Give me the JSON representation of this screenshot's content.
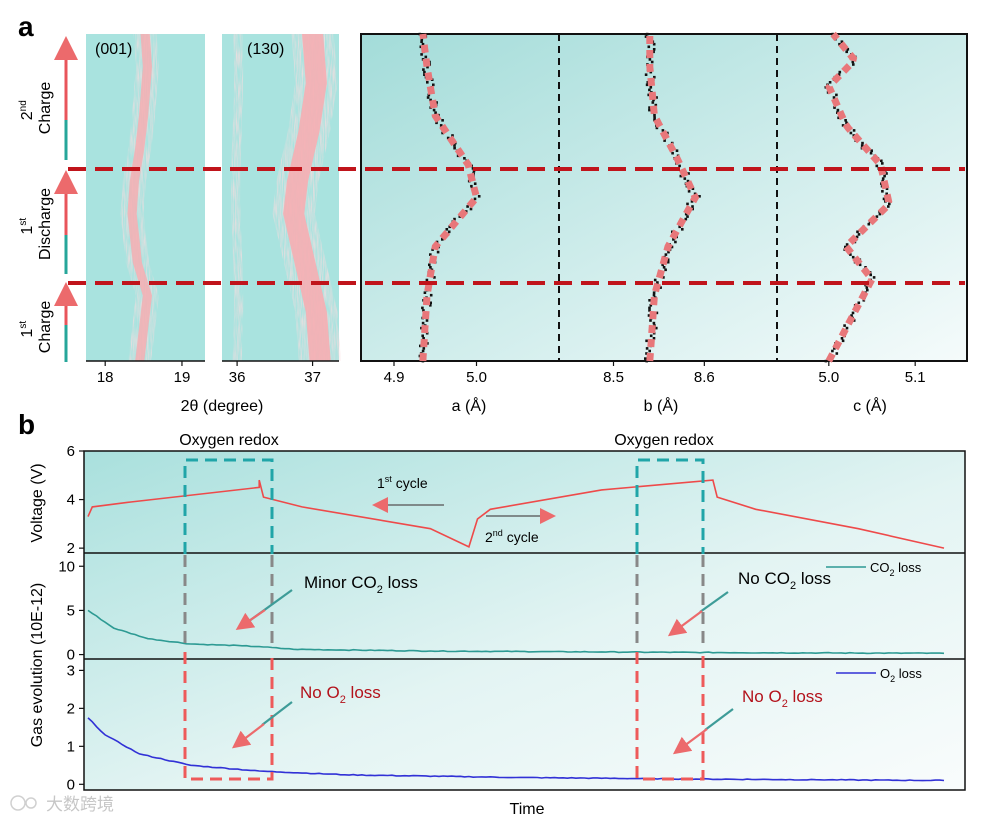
{
  "panel_a": {
    "letter": "a",
    "stages": [
      {
        "sup": "nd",
        "num": "2",
        "word": "Charge"
      },
      {
        "sup": "st",
        "num": "1",
        "word": "Discharge"
      },
      {
        "sup": "st",
        "num": "1",
        "word": "Charge"
      }
    ],
    "xrd_panels": [
      {
        "label": "(001)",
        "ticks": [
          "18",
          "19"
        ]
      },
      {
        "label": "(130)",
        "ticks": [
          "36",
          "37"
        ]
      }
    ],
    "xrd_xlabel": "2θ (degree)",
    "lattice_xlabels": [
      "a (Å)",
      "b (Å)",
      "c (Å)"
    ]
  },
  "panel_b": {
    "letter": "b",
    "redox_labels": [
      "Oxygen redox",
      "Oxygen redox"
    ],
    "voltage": {
      "ylabel": "Voltage (V)"
    },
    "cycle1": {
      "num": "1",
      "sup": "st",
      "word": " cycle"
    },
    "cycle2": {
      "num": "2",
      "sup": "nd",
      "word": " cycle"
    },
    "co2": {
      "annot1": {
        "pre": "Minor CO",
        "sub": "2",
        "post": " loss"
      },
      "annot2": {
        "pre": "No CO",
        "sub": "2",
        "post": " loss"
      },
      "legend": {
        "pre": "CO",
        "sub": "2",
        "post": " loss"
      }
    },
    "o2": {
      "annot1": {
        "pre": "No O",
        "sub": "2",
        "post": " loss"
      },
      "annot2": {
        "pre": "No O",
        "sub": "2",
        "post": " loss"
      },
      "legend": {
        "pre": "O",
        "sub": "2",
        "post": " loss"
      }
    },
    "gas_ylabel": "Gas evolution (10E-12)",
    "xlabel": "Time"
  },
  "watermark": "大数跨境",
  "colors": {
    "teal_bg": "#a9e3df",
    "pink": "#f7b7bb",
    "red_dash": "#c0141b",
    "fit": "#e8777a",
    "voltage": "#ee4a4a",
    "co2": "#2d9a93",
    "o2": "#3131d6",
    "teal_box": "#20a5a8",
    "red_box": "#ee5a5a",
    "dark_red_text": "#b3121b"
  },
  "chart_data": [
    {
      "type": "heatmap",
      "title": "(001)",
      "xlabel": "2θ (degree)",
      "xlim": [
        17.75,
        19.3
      ],
      "x_ticks": [
        18,
        19
      ],
      "peak_center": [
        [
          0.0,
          18.45
        ],
        [
          0.1,
          18.5
        ],
        [
          0.2,
          18.55
        ],
        [
          0.3,
          18.42
        ],
        [
          0.45,
          18.35
        ],
        [
          0.55,
          18.38
        ],
        [
          0.65,
          18.45
        ],
        [
          0.75,
          18.5
        ],
        [
          0.9,
          18.55
        ],
        [
          1.0,
          18.52
        ]
      ]
    },
    {
      "type": "heatmap",
      "title": "(130)",
      "xlabel": "2θ (degree)",
      "xlim": [
        35.8,
        37.35
      ],
      "x_ticks": [
        36,
        37
      ],
      "peak_center_left": 36.0,
      "peak_center_right": [
        [
          0.0,
          37.1
        ],
        [
          0.15,
          37.05
        ],
        [
          0.3,
          36.9
        ],
        [
          0.45,
          36.75
        ],
        [
          0.55,
          36.8
        ],
        [
          0.7,
          36.95
        ],
        [
          0.85,
          37.05
        ],
        [
          1.0,
          37.0
        ]
      ]
    },
    {
      "type": "scatter",
      "xlabel": "a (Å)",
      "x_ticks": [
        4.9,
        5.0
      ],
      "xlim": [
        4.86,
        5.1
      ],
      "trend": [
        [
          0.0,
          4.935
        ],
        [
          0.2,
          4.94
        ],
        [
          0.35,
          4.95
        ],
        [
          0.5,
          5.0
        ],
        [
          0.6,
          4.99
        ],
        [
          0.75,
          4.95
        ],
        [
          0.9,
          4.94
        ],
        [
          1.0,
          4.935
        ]
      ]
    },
    {
      "type": "scatter",
      "xlabel": "b (Å)",
      "x_ticks": [
        8.5,
        8.6
      ],
      "xlim": [
        8.44,
        8.68
      ],
      "trend": [
        [
          0.0,
          8.54
        ],
        [
          0.2,
          8.545
        ],
        [
          0.35,
          8.56
        ],
        [
          0.5,
          8.59
        ],
        [
          0.62,
          8.57
        ],
        [
          0.75,
          8.545
        ],
        [
          0.9,
          8.54
        ],
        [
          1.0,
          8.54
        ]
      ]
    },
    {
      "type": "scatter",
      "xlabel": "c (Å)",
      "x_ticks": [
        5.0,
        5.1
      ],
      "xlim": [
        4.94,
        5.16
      ],
      "trend": [
        [
          0.0,
          5.0
        ],
        [
          0.1,
          5.02
        ],
        [
          0.25,
          5.05
        ],
        [
          0.35,
          5.02
        ],
        [
          0.48,
          5.07
        ],
        [
          0.6,
          5.06
        ],
        [
          0.72,
          5.02
        ],
        [
          0.84,
          5.0
        ],
        [
          0.92,
          5.03
        ],
        [
          1.0,
          5.005
        ]
      ]
    },
    {
      "type": "line",
      "ylabel": "Voltage (V)",
      "ylim": [
        1.8,
        6
      ],
      "y_ticks": [
        2,
        4,
        6
      ],
      "xlim": [
        0,
        1
      ],
      "series": [
        {
          "points": [
            [
              0.0,
              3.3
            ],
            [
              0.005,
              3.7
            ],
            [
              0.05,
              3.9
            ],
            [
              0.2,
              4.5
            ],
            [
              0.2,
              4.8
            ],
            [
              0.205,
              4.1
            ],
            [
              0.25,
              3.7
            ],
            [
              0.4,
              2.8
            ],
            [
              0.445,
              2.05
            ],
            [
              0.455,
              3.2
            ],
            [
              0.47,
              3.6
            ],
            [
              0.6,
              4.4
            ],
            [
              0.73,
              4.8
            ],
            [
              0.735,
              4.1
            ],
            [
              0.78,
              3.6
            ],
            [
              0.9,
              2.8
            ],
            [
              1.0,
              2.0
            ]
          ]
        }
      ]
    },
    {
      "type": "line",
      "ylim": [
        -0.5,
        11.5
      ],
      "y_ticks": [
        0,
        5,
        10
      ],
      "xlim": [
        0,
        1
      ],
      "series": [
        {
          "name": "CO2 loss",
          "points": [
            [
              0.0,
              5.0
            ],
            [
              0.03,
              3.0
            ],
            [
              0.07,
              1.8
            ],
            [
              0.12,
              1.2
            ],
            [
              0.18,
              1.0
            ],
            [
              0.2,
              0.9
            ],
            [
              0.24,
              0.6
            ],
            [
              0.4,
              0.4
            ],
            [
              0.6,
              0.3
            ],
            [
              0.8,
              0.2
            ],
            [
              1.0,
              0.15
            ]
          ]
        }
      ]
    },
    {
      "type": "line",
      "ylim": [
        -0.15,
        3.3
      ],
      "y_ticks": [
        0,
        1,
        2,
        3
      ],
      "xlim": [
        0,
        1
      ],
      "series": [
        {
          "name": "O2 loss",
          "points": [
            [
              0.0,
              1.75
            ],
            [
              0.02,
              1.3
            ],
            [
              0.06,
              0.8
            ],
            [
              0.12,
              0.5
            ],
            [
              0.2,
              0.35
            ],
            [
              0.3,
              0.25
            ],
            [
              0.5,
              0.18
            ],
            [
              0.7,
              0.14
            ],
            [
              0.85,
              0.12
            ],
            [
              1.0,
              0.1
            ]
          ]
        }
      ]
    }
  ]
}
